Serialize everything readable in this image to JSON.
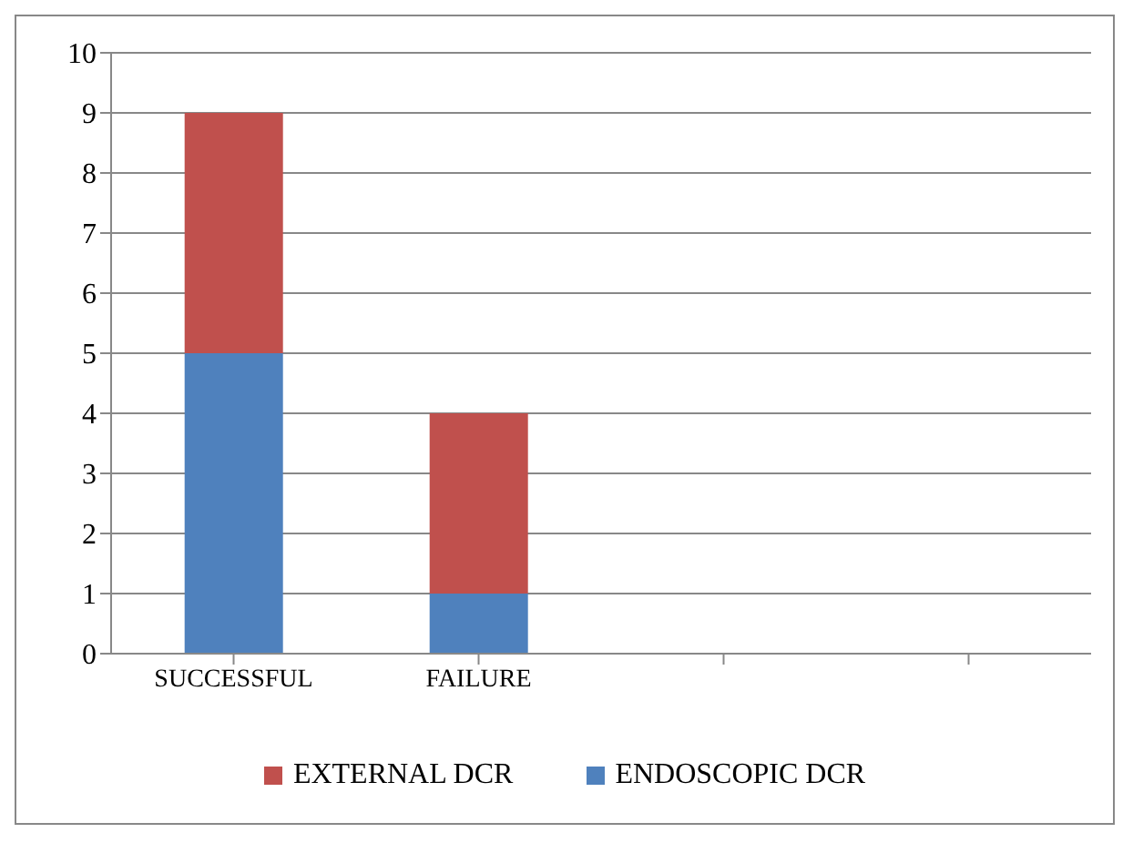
{
  "chart_data": {
    "type": "bar",
    "stacked": true,
    "categories": [
      "SUCCESSFUL",
      "FAILURE",
      null,
      null
    ],
    "series": [
      {
        "name": "ENDOSCOPIC DCR",
        "color": "#4f81bd",
        "values": [
          5,
          1,
          null,
          null
        ]
      },
      {
        "name": "EXTERNAL DCR",
        "color": "#c0504d",
        "values": [
          4,
          3,
          null,
          null
        ]
      }
    ],
    "ylim": [
      0,
      10
    ],
    "yticks": [
      0,
      1,
      2,
      3,
      4,
      5,
      6,
      7,
      8,
      9,
      10
    ],
    "grid": "y",
    "legend": "bottom"
  }
}
